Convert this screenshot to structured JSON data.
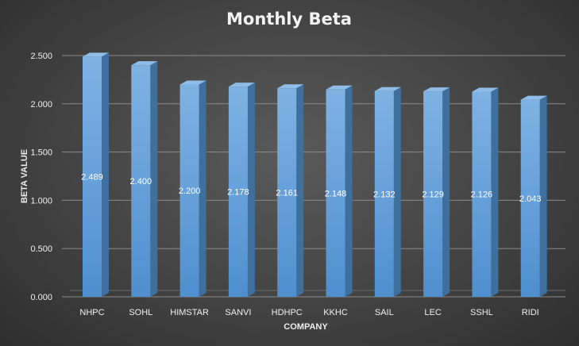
{
  "chart_data": {
    "type": "bar",
    "title": "Monthly Beta",
    "xlabel": "COMPANY",
    "ylabel": "BETA VALUE",
    "categories": [
      "NHPC",
      "SOHL",
      "HIMSTAR",
      "SANVI",
      "HDHPC",
      "KKHC",
      "SAIL",
      "LEC",
      "SSHL",
      "RIDI"
    ],
    "values": [
      2.489,
      2.4,
      2.2,
      2.178,
      2.161,
      2.148,
      2.132,
      2.129,
      2.126,
      2.043
    ],
    "value_labels": [
      "2.489",
      "2.400",
      "2.200",
      "2.178",
      "2.161",
      "2.148",
      "2.132",
      "2.129",
      "2.126",
      "2.043"
    ],
    "ylim": [
      0,
      2.5
    ],
    "yticks": [
      0,
      0.5,
      1.0,
      1.5,
      2.0,
      2.5
    ],
    "ytick_labels": [
      "0.000",
      "0.500",
      "1.000",
      "1.500",
      "2.000",
      "2.500"
    ],
    "grid": true,
    "legend": "none",
    "colors": {
      "bar_front": "#5b9bd5",
      "bar_front_light": "#7fb2e3",
      "bar_side": "#3f6f9c",
      "bar_top": "#8fbde8",
      "text": "#f0f0f0"
    }
  }
}
